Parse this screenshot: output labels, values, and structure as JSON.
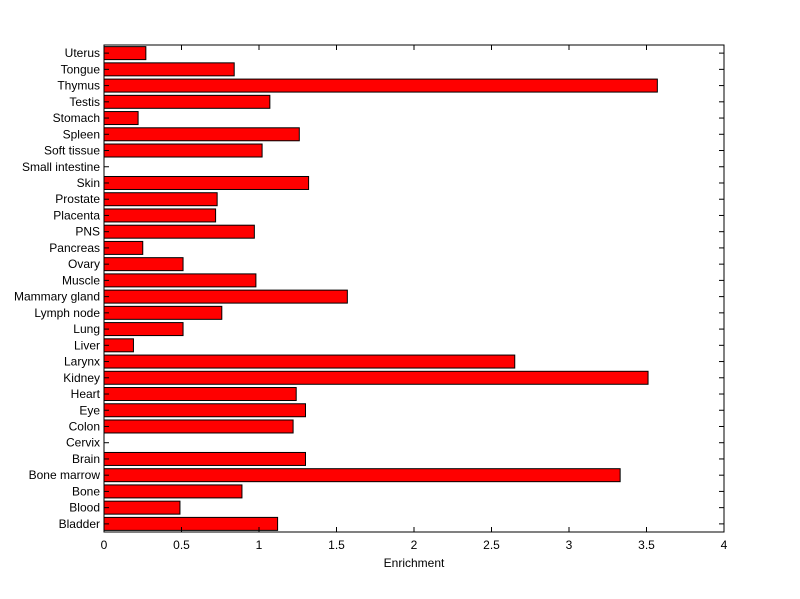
{
  "chart_data": {
    "type": "bar",
    "orientation": "horizontal",
    "xlabel": "Enrichment",
    "ylabel": "",
    "title": "",
    "xlim": [
      0,
      4
    ],
    "xticks": [
      "0",
      "0.5",
      "1",
      "1.5",
      "2",
      "2.5",
      "3",
      "3.5",
      "4"
    ],
    "bar_color": "#ff0000",
    "edge_color": "#000000",
    "grid": false,
    "categories": [
      "Uterus",
      "Tongue",
      "Thymus",
      "Testis",
      "Stomach",
      "Spleen",
      "Soft tissue",
      "Small intestine",
      "Skin",
      "Prostate",
      "Placenta",
      "PNS",
      "Pancreas",
      "Ovary",
      "Muscle",
      "Mammary gland",
      "Lymph node",
      "Lung",
      "Liver",
      "Larynx",
      "Kidney",
      "Heart",
      "Eye",
      "Colon",
      "Cervix",
      "Brain",
      "Bone marrow",
      "Bone",
      "Blood",
      "Bladder"
    ],
    "values": [
      0.27,
      0.84,
      3.57,
      1.07,
      0.22,
      1.26,
      1.02,
      0,
      1.32,
      0.73,
      0.72,
      0.97,
      0.25,
      0.51,
      0.98,
      1.57,
      0.76,
      0.51,
      0.19,
      2.65,
      3.51,
      1.24,
      1.3,
      1.22,
      0,
      1.3,
      3.33,
      0.89,
      0.49,
      1.12
    ]
  }
}
